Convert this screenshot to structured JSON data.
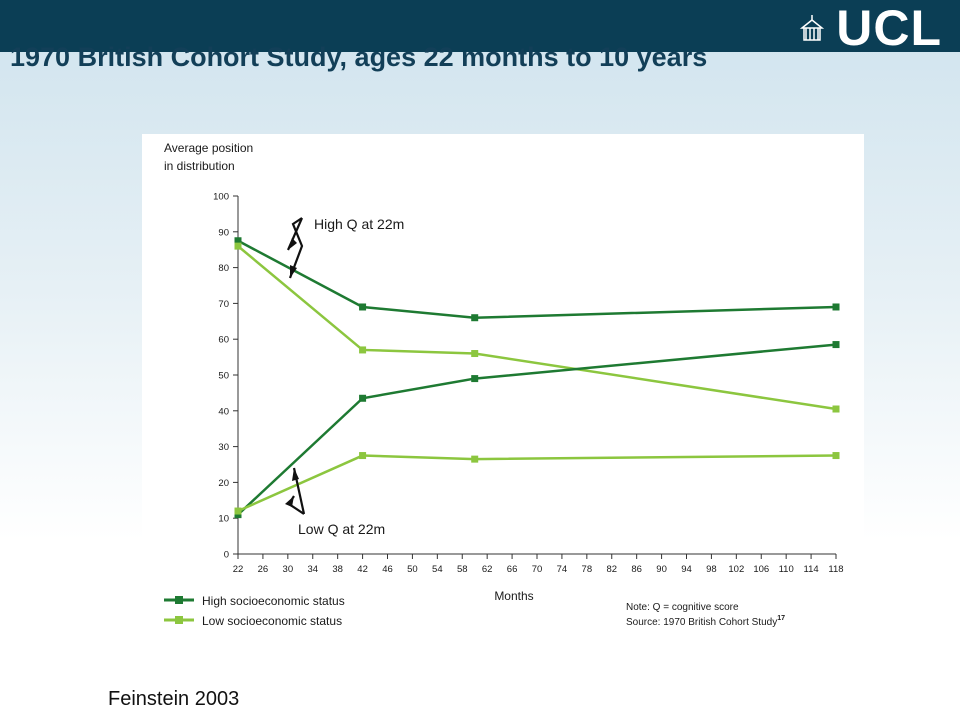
{
  "slide": {
    "title": "1970 British Cohort Study, ages 22 months to 10 years",
    "logo_text": "UCL",
    "citation": "Feinstein 2003"
  },
  "colors": {
    "header_bar": "#0b3e55",
    "high_ses": "#1e7a32",
    "low_ses": "#8cc63f"
  },
  "chart_data": {
    "type": "line",
    "ylabel": "Average position in distribution",
    "ylabel_lines": [
      "Average position",
      "in distribution"
    ],
    "xlabel": "Months",
    "ylim": [
      0,
      100
    ],
    "xlim": [
      22,
      118
    ],
    "yticks": [
      0,
      10,
      20,
      30,
      40,
      50,
      60,
      70,
      80,
      90,
      100
    ],
    "xticks": [
      22,
      26,
      30,
      34,
      38,
      42,
      46,
      50,
      54,
      58,
      62,
      66,
      70,
      74,
      78,
      82,
      86,
      90,
      94,
      98,
      102,
      106,
      110,
      114,
      118
    ],
    "grid": false,
    "legend_position": "bottom-left",
    "series": [
      {
        "name": "High socioeconomic status",
        "group": "High Q at 22m",
        "color": "#1e7a32",
        "x": [
          22,
          42,
          60,
          118
        ],
        "values": [
          87.5,
          69,
          66,
          69
        ]
      },
      {
        "name": "Low socioeconomic status",
        "group": "High Q at 22m",
        "color": "#8cc63f",
        "x": [
          22,
          42,
          60,
          118
        ],
        "values": [
          86,
          57,
          56,
          40.5
        ]
      },
      {
        "name": "High socioeconomic status",
        "group": "Low Q at 22m",
        "color": "#1e7a32",
        "x": [
          22,
          42,
          60,
          118
        ],
        "values": [
          11,
          43.5,
          49,
          58.5
        ]
      },
      {
        "name": "Low socioeconomic status",
        "group": "Low Q at 22m",
        "color": "#8cc63f",
        "x": [
          22,
          42,
          60,
          118
        ],
        "values": [
          12,
          27.5,
          26.5,
          27.5
        ]
      }
    ],
    "legend": [
      {
        "label": "High socioeconomic status",
        "color": "#1e7a32"
      },
      {
        "label": "Low socioeconomic status",
        "color": "#8cc63f"
      }
    ],
    "annotations": {
      "high_q": "High Q at 22m",
      "low_q": "Low Q at 22m"
    },
    "notes": [
      "Note: Q = cognitive score",
      "Source: 1970 British Cohort Study"
    ],
    "source_superscript": "17"
  }
}
